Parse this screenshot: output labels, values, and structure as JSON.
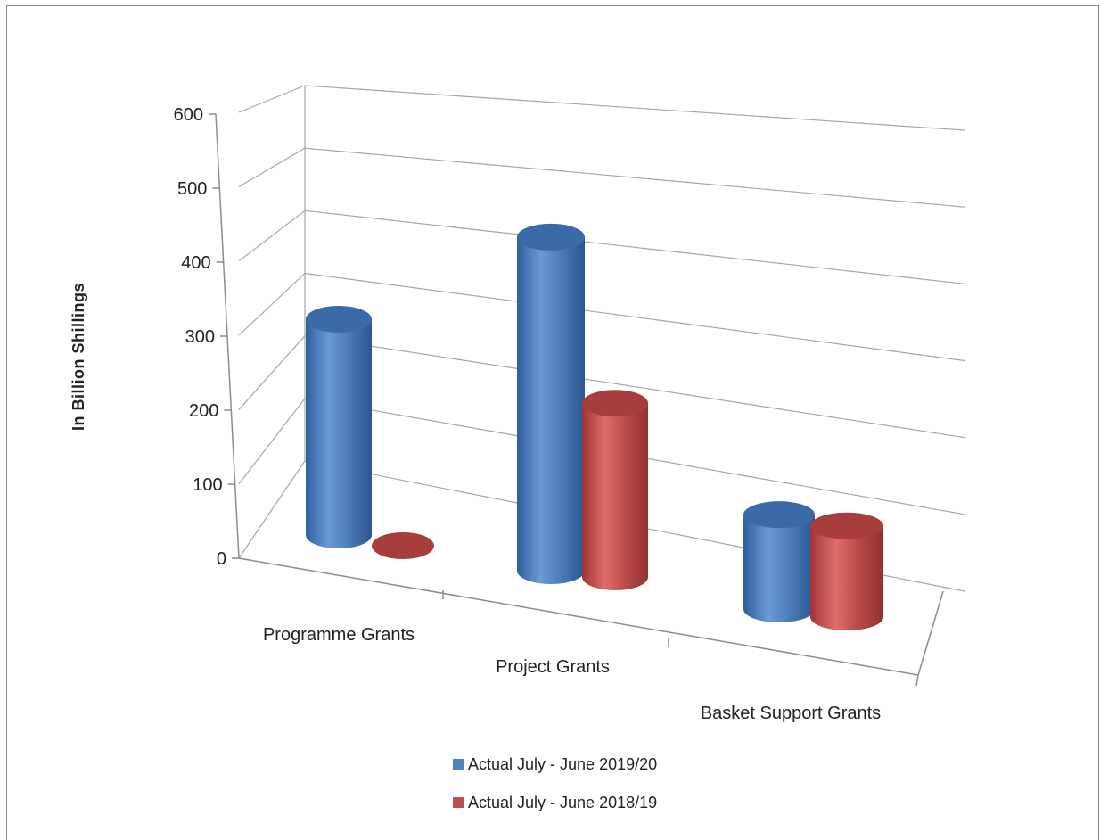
{
  "chart_data": {
    "type": "bar",
    "title": "",
    "ylabel": "In Billion  Shillings",
    "xlabel": "",
    "categories": [
      "Programme Grants",
      "Project Grants",
      "Basket Support Grants"
    ],
    "series": [
      {
        "name": "Actual July  - June 2019/20",
        "values": [
          270,
          490,
          150
        ],
        "color": "#4F81BD"
      },
      {
        "name": "Actual July  - June 2018/19",
        "values": [
          0,
          255,
          145
        ],
        "color": "#C0504D"
      }
    ],
    "ylim": [
      0,
      600
    ],
    "yticks": [
      "0",
      "100",
      "200",
      "300",
      "400",
      "500",
      "600"
    ],
    "grid": true,
    "legend": "bottom",
    "style": "3d-cylinder"
  }
}
